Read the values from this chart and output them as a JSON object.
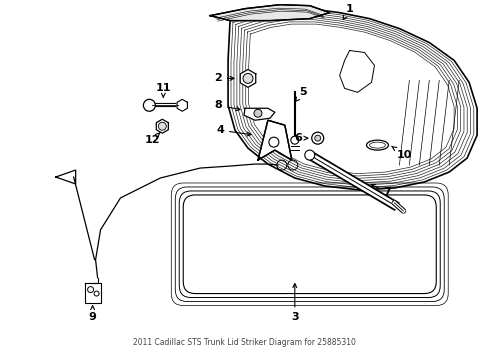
{
  "title": "2011 Cadillac STS Trunk Lid Striker Diagram for 25885310",
  "bg": "#ffffff",
  "lc": "#000000",
  "fw": 4.89,
  "fh": 3.6,
  "dpi": 100
}
